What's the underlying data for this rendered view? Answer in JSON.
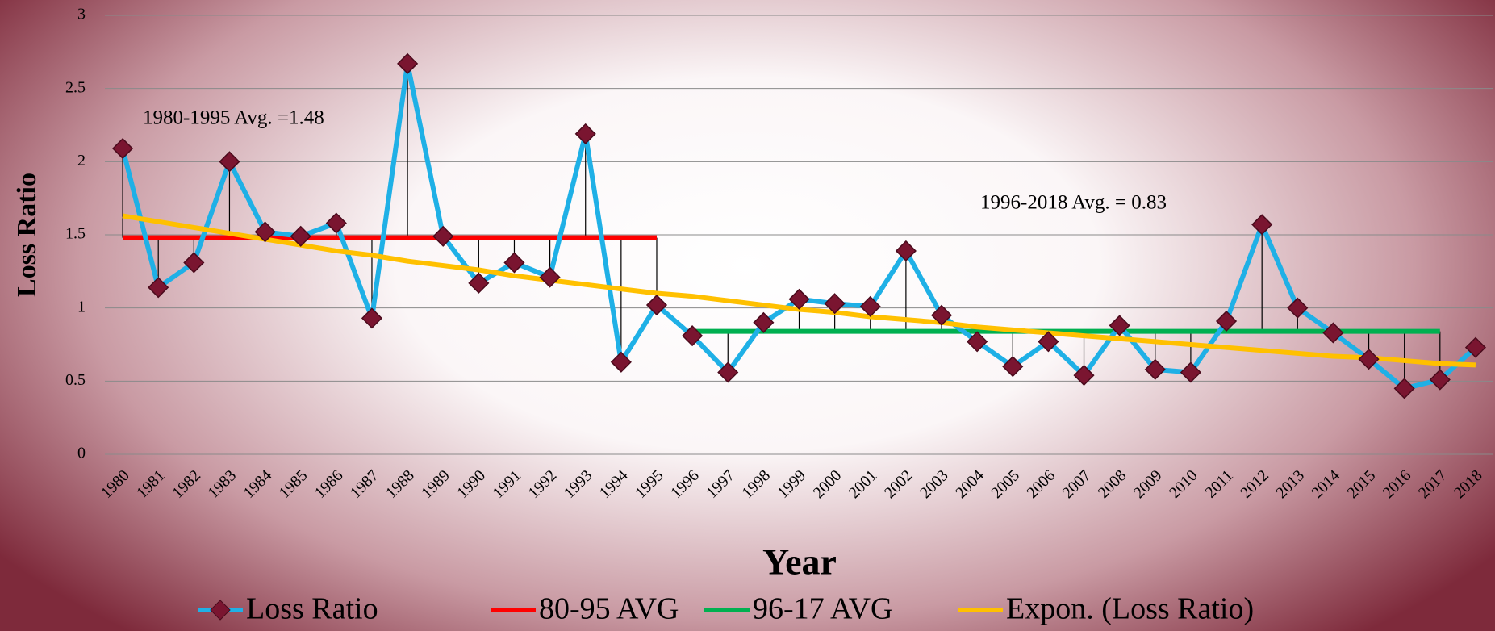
{
  "chart_data": {
    "type": "line",
    "y_label": "Loss Ratio",
    "x_label": "Year",
    "annotations": [
      "1980-1995 Avg. =1.48",
      "1996-2018 Avg. = 0.83"
    ],
    "categories": [
      "1980",
      "1981",
      "1982",
      "1983",
      "1984",
      "1985",
      "1986",
      "1987",
      "1988",
      "1989",
      "1990",
      "1991",
      "1992",
      "1993",
      "1994",
      "1995",
      "1996",
      "1997",
      "1998",
      "1999",
      "2000",
      "2001",
      "2002",
      "2003",
      "2004",
      "2005",
      "2006",
      "2007",
      "2008",
      "2009",
      "2010",
      "2011",
      "2012",
      "2013",
      "2014",
      "2015",
      "2016",
      "2017",
      "2018"
    ],
    "series": [
      {
        "name": "Loss Ratio",
        "color": "#1fb0e6",
        "marker": "diamond",
        "values": [
          2.09,
          1.14,
          1.31,
          2.0,
          1.52,
          1.49,
          1.58,
          0.93,
          2.67,
          1.49,
          1.17,
          1.31,
          1.21,
          2.19,
          0.63,
          1.02,
          0.81,
          0.56,
          0.9,
          1.06,
          1.03,
          1.01,
          1.39,
          0.95,
          0.77,
          0.6,
          0.77,
          0.54,
          0.88,
          0.58,
          0.56,
          0.91,
          1.57,
          1.0,
          0.83,
          0.65,
          0.45,
          0.51,
          0.73
        ]
      },
      {
        "name": "80-95 AVG",
        "color": "#ff0000",
        "values": [
          1.48,
          1.48,
          1.48,
          1.48,
          1.48,
          1.48,
          1.48,
          1.48,
          1.48,
          1.48,
          1.48,
          1.48,
          1.48,
          1.48,
          1.48,
          1.48,
          null,
          null,
          null,
          null,
          null,
          null,
          null,
          null,
          null,
          null,
          null,
          null,
          null,
          null,
          null,
          null,
          null,
          null,
          null,
          null,
          null,
          null,
          null
        ]
      },
      {
        "name": "96-17 AVG",
        "color": "#00b050",
        "values": [
          null,
          null,
          null,
          null,
          null,
          null,
          null,
          null,
          null,
          null,
          null,
          null,
          null,
          null,
          null,
          null,
          0.84,
          0.84,
          0.84,
          0.84,
          0.84,
          0.84,
          0.84,
          0.84,
          0.84,
          0.84,
          0.84,
          0.84,
          0.84,
          0.84,
          0.84,
          0.84,
          0.84,
          0.84,
          0.84,
          0.84,
          0.84,
          0.84,
          null
        ]
      },
      {
        "name": "Expon. (Loss Ratio)",
        "color": "#ffc000",
        "values": [
          1.63,
          1.59,
          1.55,
          1.51,
          1.47,
          1.43,
          1.39,
          1.36,
          1.32,
          1.29,
          1.26,
          1.22,
          1.19,
          1.16,
          1.13,
          1.1,
          1.08,
          1.05,
          1.02,
          0.99,
          0.97,
          0.94,
          0.92,
          0.9,
          0.87,
          0.85,
          0.83,
          0.81,
          0.79,
          0.77,
          0.75,
          0.73,
          0.71,
          0.69,
          0.67,
          0.66,
          0.64,
          0.62,
          0.61
        ]
      }
    ],
    "ylim": [
      0,
      3
    ],
    "yticks": [
      0,
      0.5,
      1,
      1.5,
      2,
      2.5,
      3
    ],
    "grid": true,
    "legend": "bottom"
  }
}
